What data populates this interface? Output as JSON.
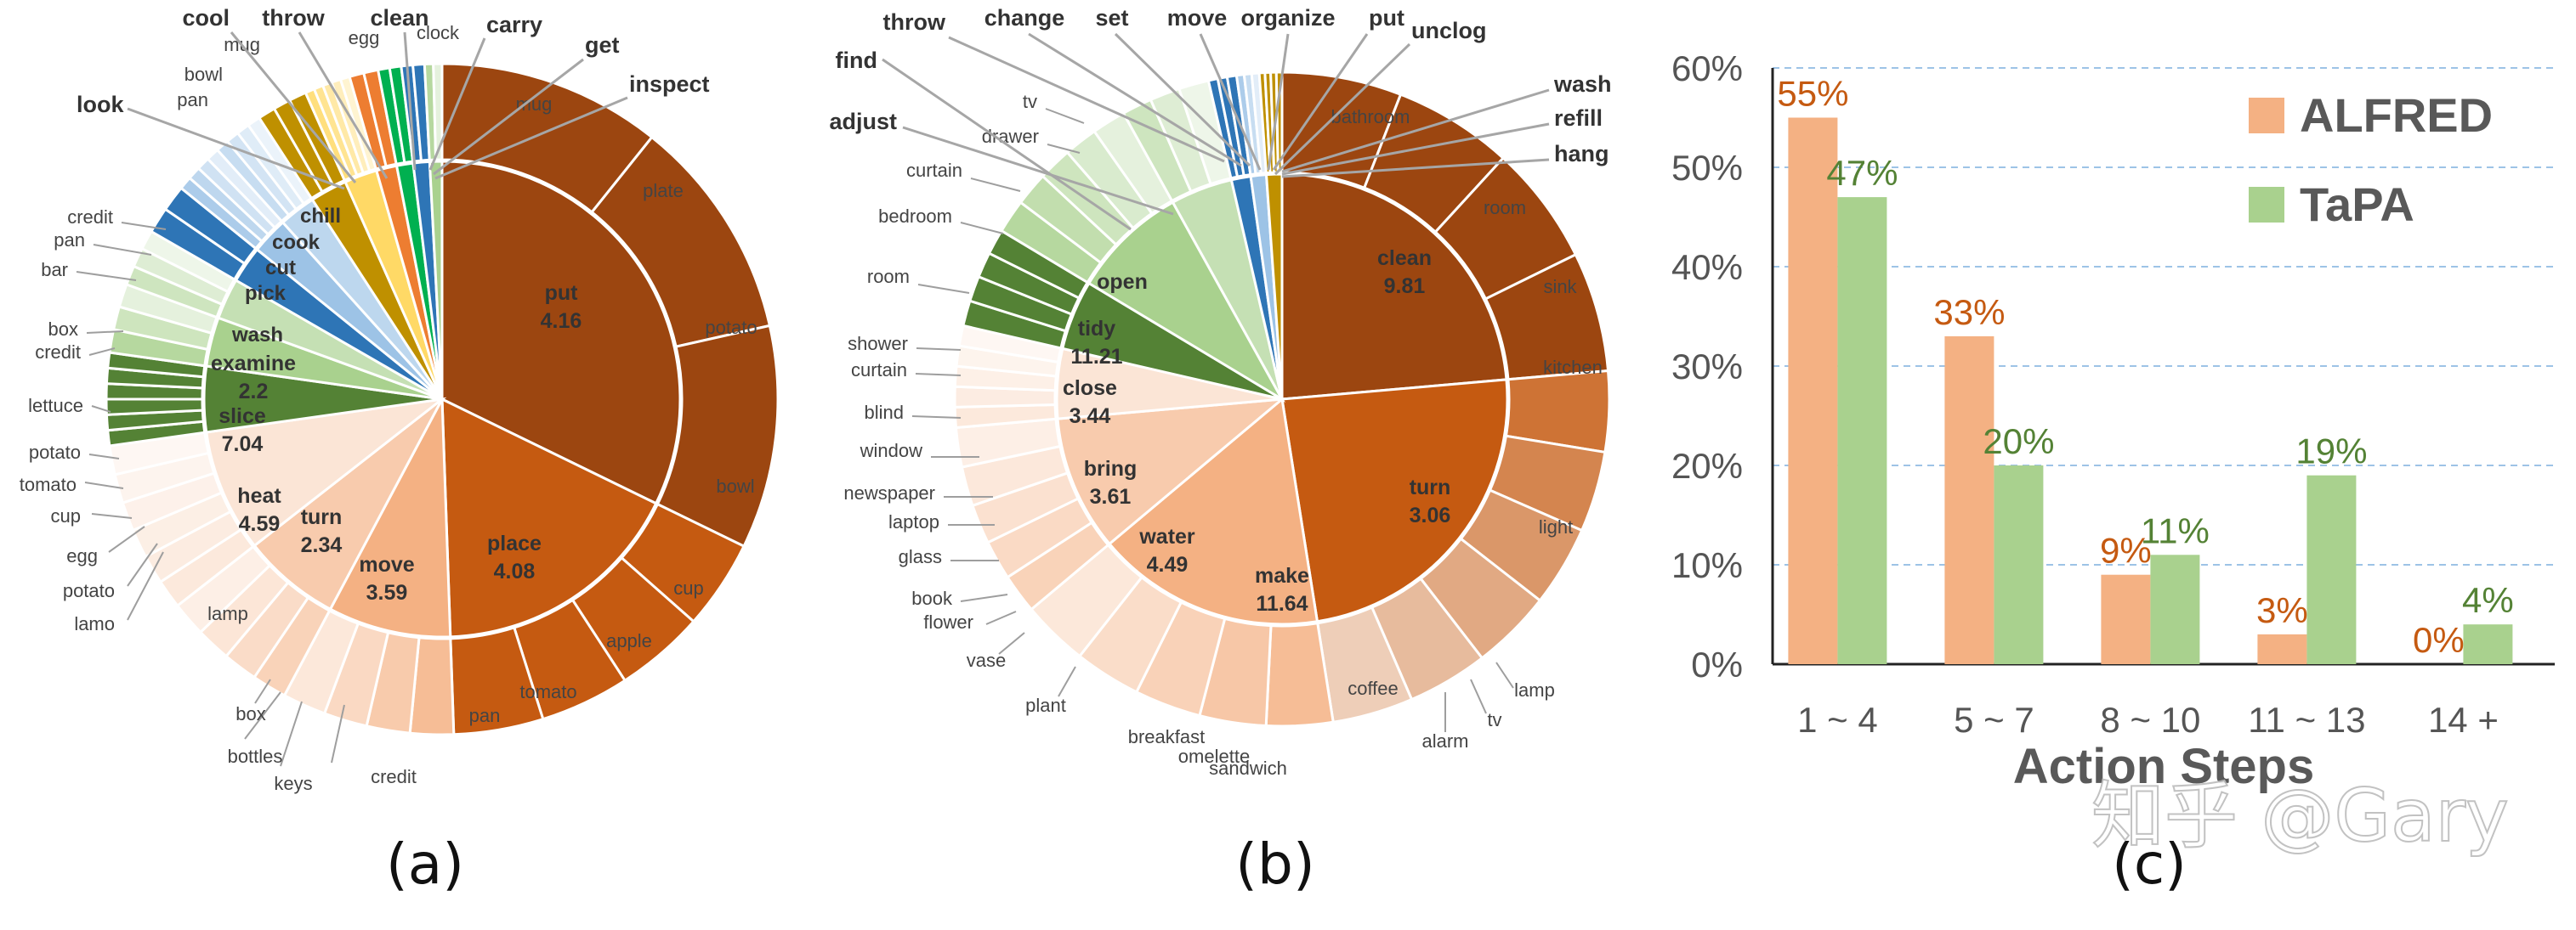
{
  "panel_labels": [
    "(a)",
    "(b)",
    "(c)"
  ],
  "watermark": "知乎 @Gary",
  "chart_data": [
    {
      "type": "pie",
      "panel": "(a)",
      "inner": [
        {
          "label": "put",
          "value": 4.16,
          "color": "#9c4610"
        },
        {
          "label": "place",
          "value": 4.08,
          "color": "#c55a11"
        },
        {
          "label": "move",
          "value": 3.59,
          "color": "#f4b183"
        },
        {
          "label": "turn",
          "value": 2.34,
          "color": "#f8cbad"
        },
        {
          "label": "heat",
          "value": 4.59,
          "color": "#fbe5d6"
        },
        {
          "label": "slice",
          "value": 7.04,
          "color": "#548235"
        },
        {
          "label": "examine",
          "value": 2.2,
          "color": "#a9d18e"
        },
        {
          "label": "wash",
          "value": null,
          "color": "#c5e0b4"
        },
        {
          "label": "pick",
          "value": null,
          "color": "#2e75b6"
        },
        {
          "label": "cut",
          "value": null,
          "color": "#9dc3e6"
        },
        {
          "label": "cook",
          "value": null,
          "color": "#bdd7ee"
        },
        {
          "label": "chill",
          "value": null,
          "color": "#bf9000"
        },
        {
          "label": "",
          "value": null,
          "color": "#ffd966"
        },
        {
          "label": "",
          "value": null,
          "color": "#ed7d31"
        },
        {
          "label": "",
          "value": null,
          "color": "#00b050"
        },
        {
          "label": "",
          "value": null,
          "color": "#2e75b6"
        },
        {
          "label": "",
          "value": null,
          "color": "#a9d18e"
        }
      ],
      "inner_labels": [
        {
          "text": "put",
          "value": "4.16"
        },
        {
          "text": "place",
          "value": "4.08"
        },
        {
          "text": "move",
          "value": "3.59"
        },
        {
          "text": "turn",
          "value": "2.34"
        },
        {
          "text": "heat",
          "value": "4.59"
        },
        {
          "text": "slice",
          "value": "7.04"
        },
        {
          "text": "examine",
          "value": "2.2"
        },
        {
          "text": "wash",
          "value": ""
        },
        {
          "text": "pick",
          "value": ""
        },
        {
          "text": "cut",
          "value": ""
        },
        {
          "text": "cook",
          "value": ""
        },
        {
          "text": "chill",
          "value": ""
        }
      ],
      "outer_labels": [
        "mug",
        "plate",
        "potato",
        "bowl",
        "cup",
        "apple",
        "tomato",
        "pan",
        "credit",
        "keys",
        "bottles",
        "box",
        "lamp",
        "lamo",
        "potato",
        "egg",
        "cup",
        "tomato",
        "potato",
        "lettuce",
        "credit",
        "box",
        "bar",
        "pan",
        "credit",
        "pan",
        "bowl",
        "mug",
        "egg",
        "clock"
      ],
      "callouts": [
        "cool",
        "throw",
        "clean",
        "carry",
        "get",
        "inspect",
        "look"
      ]
    },
    {
      "type": "pie",
      "panel": "(b)",
      "inner": [
        {
          "label": "clean",
          "value": 9.81,
          "color": "#9c4610"
        },
        {
          "label": "turn",
          "value": 3.06,
          "color": "#c55a11"
        },
        {
          "label": "make",
          "value": 11.64,
          "color": "#f4b183"
        },
        {
          "label": "water",
          "value": 4.49,
          "color": "#f8cbad"
        },
        {
          "label": "bring",
          "value": 3.61,
          "color": "#fbe5d6"
        },
        {
          "label": "close",
          "value": 3.44,
          "color": "#548235"
        },
        {
          "label": "tidy",
          "value": 11.21,
          "color": "#a9d18e"
        },
        {
          "label": "open",
          "value": null,
          "color": "#c5e0b4"
        }
      ],
      "inner_labels": [
        {
          "text": "clean",
          "value": "9.81"
        },
        {
          "text": "turn",
          "value": "3.06"
        },
        {
          "text": "make",
          "value": "11.64"
        },
        {
          "text": "water",
          "value": "4.49"
        },
        {
          "text": "bring",
          "value": "3.61"
        },
        {
          "text": "close",
          "value": "3.44"
        },
        {
          "text": "tidy",
          "value": "11.21"
        },
        {
          "text": "open",
          "value": ""
        }
      ],
      "outer_labels": [
        "bathroom",
        "room",
        "sink",
        "kitchen",
        "light",
        "lamp",
        "tv",
        "alarm",
        "coffee",
        "sandwich",
        "omelette",
        "breakfast",
        "plant",
        "vase",
        "flower",
        "book",
        "glass",
        "laptop",
        "newspaper",
        "window",
        "blind",
        "curtain",
        "shower",
        "room",
        "bedroom",
        "curtain",
        "drawer",
        "tv"
      ],
      "callouts": [
        "throw",
        "change",
        "set",
        "move",
        "organize",
        "put",
        "unclog",
        "find",
        "adjust",
        "wash",
        "refill",
        "hang"
      ]
    },
    {
      "type": "bar",
      "panel": "(c)",
      "categories": [
        "1 ~ 4",
        "5 ~ 7",
        "8 ~ 10",
        "11 ~ 13",
        "14 +"
      ],
      "series": [
        {
          "name": "ALFRED",
          "values": [
            55,
            33,
            9,
            3,
            0
          ],
          "color": "#f4b183",
          "label_color": "#c55a11"
        },
        {
          "name": "TaPA",
          "values": [
            47,
            20,
            11,
            19,
            4
          ],
          "color": "#a9d18e",
          "label_color": "#548235"
        }
      ],
      "value_labels": [
        [
          "55%",
          "33%",
          "9%",
          "3%",
          "0%"
        ],
        [
          "47%",
          "20%",
          "11%",
          "19%",
          "4%"
        ]
      ],
      "xlabel": "Action Steps",
      "ylabel": "",
      "ylim": [
        0,
        60
      ],
      "yticks": [
        "0%",
        "10%",
        "20%",
        "30%",
        "40%",
        "50%",
        "60%"
      ],
      "grid": true,
      "legend_position": "top-right"
    }
  ]
}
